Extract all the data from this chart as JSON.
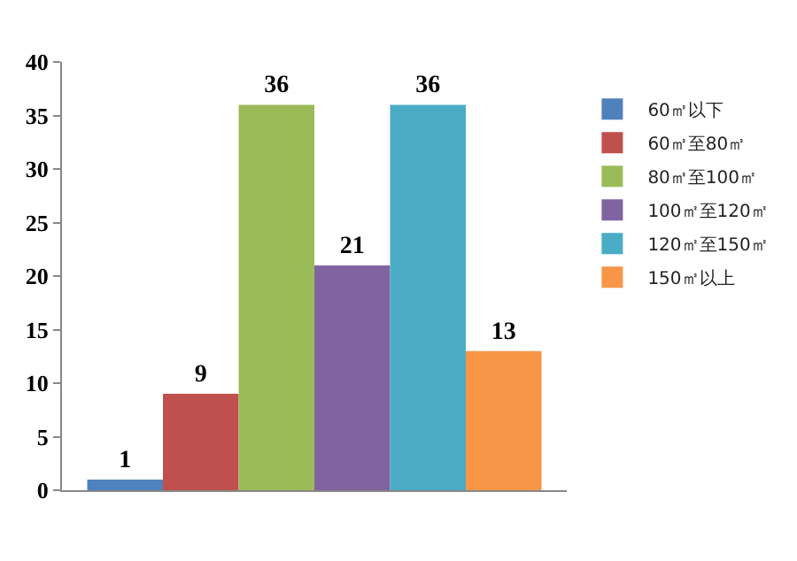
{
  "chart_data": {
    "type": "bar",
    "categories": [
      null
    ],
    "series": [
      {
        "name": "60㎡以下",
        "color": "#4f81bd",
        "values": [
          1
        ]
      },
      {
        "name": "60㎡至80㎡",
        "color": "#c0504d",
        "values": [
          9
        ]
      },
      {
        "name": "80㎡至100㎡",
        "color": "#9bbb59",
        "values": [
          36
        ]
      },
      {
        "name": "100㎡至120㎡",
        "color": "#8064a2",
        "values": [
          21
        ]
      },
      {
        "name": "120㎡至150㎡",
        "color": "#4bacc6",
        "values": [
          36
        ]
      },
      {
        "name": "150㎡以上",
        "color": "#f79646",
        "values": [
          13
        ]
      }
    ],
    "ylim": [
      0,
      40
    ],
    "yticks": [
      0,
      5,
      10,
      15,
      20,
      25,
      30,
      35,
      40
    ],
    "grid": false,
    "legend": "right",
    "data_labels": true
  }
}
